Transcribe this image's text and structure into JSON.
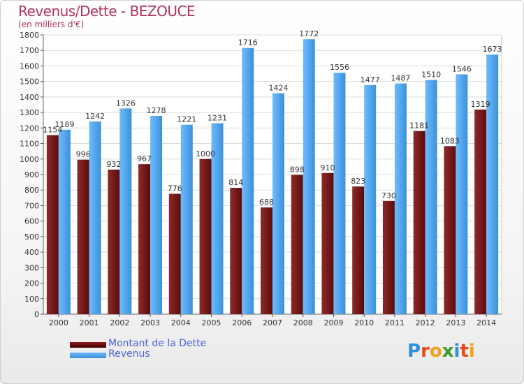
{
  "chart_data": {
    "type": "bar",
    "title": "Revenus/Dette - BEZOUCE",
    "subtitle": "(en milliers d'€)",
    "xlabel": "",
    "ylabel": "",
    "ylim": [
      0,
      1800
    ],
    "yticks": [
      0,
      100,
      200,
      300,
      400,
      500,
      600,
      700,
      800,
      900,
      1000,
      1100,
      1200,
      1300,
      1400,
      1500,
      1600,
      1700,
      1800
    ],
    "grid": true,
    "legend_position": "bottom-left",
    "categories": [
      "2000",
      "2001",
      "2002",
      "2003",
      "2004",
      "2005",
      "2006",
      "2007",
      "2008",
      "2009",
      "2010",
      "2011",
      "2012",
      "2013",
      "2014"
    ],
    "series": [
      {
        "name": "Montant de la Dette",
        "color": "#7a1e1e",
        "values": [
          1154,
          996,
          932,
          967,
          776,
          1000,
          814,
          688,
          898,
          910,
          823,
          730,
          1181,
          1083,
          1319
        ],
        "labels": [
          "1154",
          "996",
          "932",
          "967",
          "776",
          "1000",
          "814",
          "688",
          "898",
          "910",
          "823",
          "730",
          "1181",
          "1083",
          "1319"
        ]
      },
      {
        "name": "Revenus",
        "color": "#4aa3ec",
        "values": [
          1189,
          1242,
          1326,
          1278,
          1221,
          1231,
          1716,
          1424,
          1772,
          1556,
          1477,
          1487,
          1510,
          1546,
          1673
        ],
        "labels": [
          "1189",
          "1242",
          "1326",
          "1278",
          "1221",
          "1231",
          "1716",
          "1424",
          "1772",
          "1556",
          "1477",
          "1487",
          "1510",
          "1546",
          "1673"
        ]
      }
    ]
  },
  "legend": {
    "dette_label": "Montant de la Dette",
    "revenus_label": "Revenus"
  },
  "logo": {
    "text": "Proxiti",
    "colors": [
      "#2f8fd8",
      "#e84a1a",
      "#f0a020",
      "#3a9a2a",
      "#2f8fd8",
      "#e84a1a",
      "#f0a020"
    ]
  }
}
